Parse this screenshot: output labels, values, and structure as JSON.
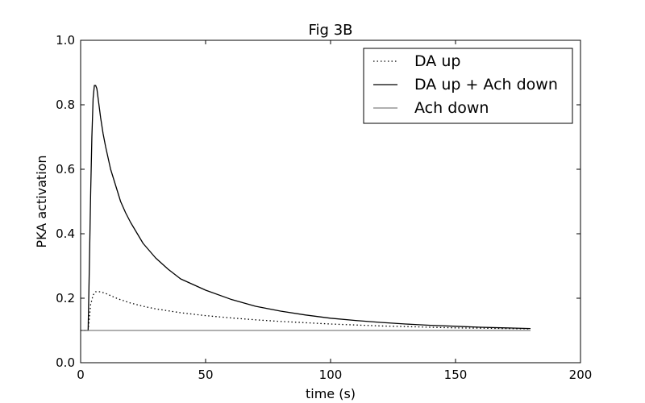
{
  "chart_data": {
    "type": "line",
    "title": "Fig 3B",
    "xlabel": "time (s)",
    "ylabel": "PKA activation",
    "xlim": [
      0,
      200
    ],
    "ylim": [
      0.0,
      1.0
    ],
    "x_ticks": [
      0,
      50,
      100,
      150,
      200
    ],
    "x_tick_labels": [
      "0",
      "50",
      "100",
      "150",
      "200"
    ],
    "y_ticks": [
      0.0,
      0.2,
      0.4,
      0.6,
      0.8,
      1.0
    ],
    "y_tick_labels": [
      "0.0",
      "0.2",
      "0.4",
      "0.6",
      "0.8",
      "1.0"
    ],
    "grid": false,
    "legend_position": "top-right",
    "series": [
      {
        "name": "DA up",
        "style": "dotted",
        "color": "#000000",
        "x": [
          0,
          2,
          2.5,
          3,
          3.5,
          4,
          5,
          6,
          7,
          8,
          10,
          12,
          15,
          20,
          25,
          30,
          40,
          50,
          60,
          70,
          80,
          90,
          100,
          110,
          120,
          130,
          140,
          150,
          160,
          170,
          180
        ],
        "y": [
          0.1,
          0.1,
          0.1,
          0.1,
          0.14,
          0.18,
          0.21,
          0.22,
          0.22,
          0.22,
          0.215,
          0.208,
          0.198,
          0.185,
          0.175,
          0.167,
          0.155,
          0.146,
          0.139,
          0.133,
          0.128,
          0.124,
          0.12,
          0.117,
          0.114,
          0.112,
          0.11,
          0.108,
          0.107,
          0.106,
          0.105
        ]
      },
      {
        "name": "DA up + Ach down",
        "style": "solid",
        "color": "#000000",
        "x": [
          0,
          2,
          2.5,
          3,
          3.5,
          4,
          4.5,
          5,
          5.5,
          6,
          6.5,
          7,
          8,
          9,
          10,
          12,
          14,
          16,
          18,
          20,
          25,
          30,
          35,
          40,
          50,
          60,
          70,
          80,
          90,
          100,
          110,
          120,
          130,
          140,
          150,
          160,
          170,
          180
        ],
        "y": [
          0.1,
          0.1,
          0.1,
          0.1,
          0.3,
          0.52,
          0.7,
          0.82,
          0.86,
          0.86,
          0.85,
          0.82,
          0.76,
          0.71,
          0.67,
          0.6,
          0.55,
          0.5,
          0.465,
          0.435,
          0.37,
          0.325,
          0.29,
          0.26,
          0.225,
          0.197,
          0.175,
          0.16,
          0.148,
          0.138,
          0.131,
          0.125,
          0.12,
          0.116,
          0.113,
          0.11,
          0.108,
          0.106
        ]
      },
      {
        "name": "Ach down",
        "style": "solid",
        "color": "#808080",
        "x": [
          0,
          180
        ],
        "y": [
          0.1,
          0.1
        ]
      }
    ]
  }
}
